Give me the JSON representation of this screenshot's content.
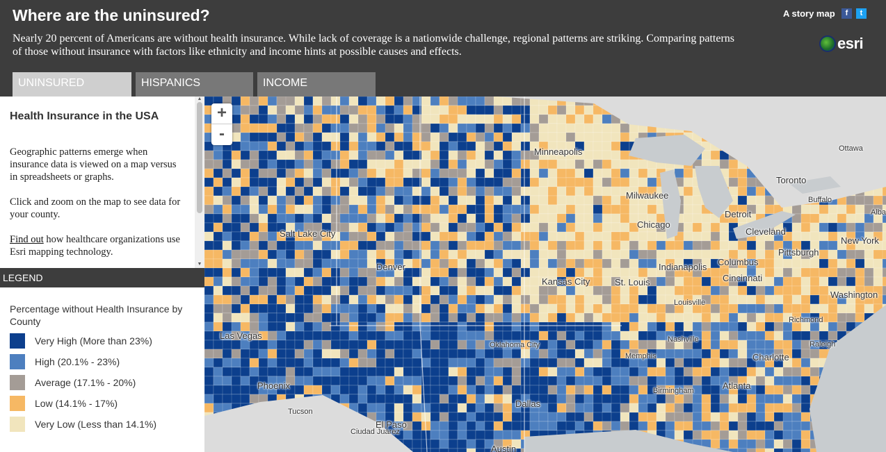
{
  "header": {
    "title": "Where are the uninsured?",
    "subtitle": "Nearly 20 percent of Americans are without health insurance. While lack of coverage is a nationwide challenge, regional patterns are striking. Comparing patterns of those without insurance with factors like ethnicity and income hints at possible causes and effects.",
    "story_map": "A story map",
    "facebook": "f",
    "twitter": "t",
    "logo": "esri"
  },
  "tabs": [
    {
      "label": "UNINSURED",
      "active": true
    },
    {
      "label": "HISPANICS",
      "active": false
    },
    {
      "label": "INCOME",
      "active": false
    }
  ],
  "info": {
    "heading": "Health Insurance in the USA",
    "p1": "Geographic patterns emerge when insurance data is viewed on a map versus in spreadsheets or graphs.",
    "p2": "Click and zoom on the map to see data for your county.",
    "link": "Find out",
    "p3_rest": " how healthcare organizations use Esri mapping technology."
  },
  "legend": {
    "bar_label": "LEGEND",
    "title": "Percentage without Health Insurance by County",
    "items": [
      {
        "label": "Very High (More than 23%)",
        "color": "#0c3f8d"
      },
      {
        "label": "High (20.1% - 23%)",
        "color": "#4d7fbf"
      },
      {
        "label": "Average (17.1% - 20%)",
        "color": "#a49c96"
      },
      {
        "label": "Low (14.1% - 17%)",
        "color": "#f6b864"
      },
      {
        "label": "Very Low (Less than 14.1%)",
        "color": "#f1e5bd"
      }
    ]
  },
  "map": {
    "zoom_in": "+",
    "zoom_out": "-",
    "water_color": "#c8cccf",
    "cities": [
      {
        "name": "Minneapolis"
      },
      {
        "name": "Ottawa"
      },
      {
        "name": "Toronto"
      },
      {
        "name": "Milwaukee"
      },
      {
        "name": "Buffalo"
      },
      {
        "name": "Albany"
      },
      {
        "name": "Detroit"
      },
      {
        "name": "Chicago"
      },
      {
        "name": "Cleveland"
      },
      {
        "name": "New York"
      },
      {
        "name": "Salt Lake City"
      },
      {
        "name": "Pittsburgh"
      },
      {
        "name": "Denver"
      },
      {
        "name": "Indianapolis"
      },
      {
        "name": "Columbus"
      },
      {
        "name": "Kansas City"
      },
      {
        "name": "St. Louis"
      },
      {
        "name": "Cincinnati"
      },
      {
        "name": "Washington"
      },
      {
        "name": "Louisville"
      },
      {
        "name": "Richmond"
      },
      {
        "name": "Las Vegas"
      },
      {
        "name": "Nashville"
      },
      {
        "name": "Oklahoma City"
      },
      {
        "name": "Raleigh"
      },
      {
        "name": "Memphis"
      },
      {
        "name": "Charlotte"
      },
      {
        "name": "Phoenix"
      },
      {
        "name": "Atlanta"
      },
      {
        "name": "Birmingham"
      },
      {
        "name": "Dallas"
      },
      {
        "name": "Tucson"
      },
      {
        "name": "El Paso"
      },
      {
        "name": "Ciudad Juárez"
      },
      {
        "name": "Austin"
      }
    ]
  }
}
